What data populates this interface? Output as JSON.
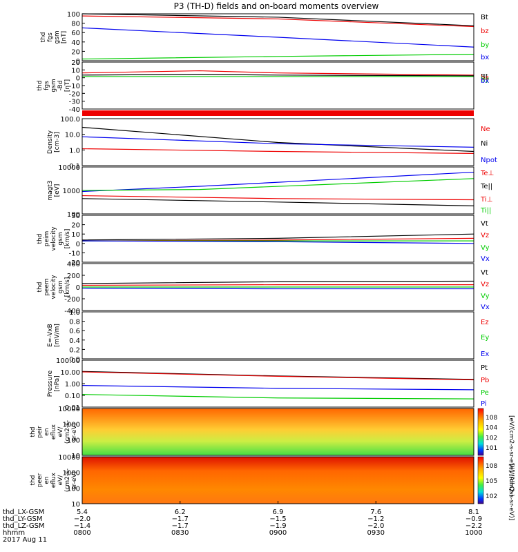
{
  "title": "P3 (TH-D) fields and on-board moments overview",
  "colors": {
    "black": "#000000",
    "red": "#ee0000",
    "green": "#00cc00",
    "blue": "#0000ee"
  },
  "chart_data": [
    {
      "id": "fgs",
      "type": "line",
      "ylabel": [
        "thd",
        "fgs",
        "gsm",
        "[nT]"
      ],
      "yticks": [
        "100",
        "80",
        "60",
        "40",
        "20",
        "0"
      ],
      "ylim": [
        -10,
        100
      ],
      "legend": [
        {
          "label": "Bt",
          "color": "#000000"
        },
        {
          "label": "bz",
          "color": "#ee0000"
        },
        {
          "label": "by",
          "color": "#00cc00"
        },
        {
          "label": "bx",
          "color": "#0000ee"
        }
      ],
      "series": [
        {
          "color": "#000000",
          "points": [
            [
              0,
              100
            ],
            [
              0.5,
              92
            ],
            [
              1,
              72
            ]
          ]
        },
        {
          "color": "#ee0000",
          "points": [
            [
              0,
              95
            ],
            [
              0.5,
              88
            ],
            [
              1,
              70
            ]
          ]
        },
        {
          "color": "#0000ee",
          "points": [
            [
              0,
              67
            ],
            [
              0.5,
              45
            ],
            [
              1,
              22
            ]
          ]
        },
        {
          "color": "#00cc00",
          "points": [
            [
              0,
              -6
            ],
            [
              0.5,
              0
            ],
            [
              1,
              5
            ]
          ]
        }
      ]
    },
    {
      "id": "fgs_delta",
      "type": "line",
      "ylabel": [
        "thd",
        "fgs",
        "gsm",
        "-Bd",
        "[nT]"
      ],
      "yticks": [
        "20",
        "10",
        "0",
        "-10",
        "-20",
        "-30",
        "-40"
      ],
      "ylim": [
        -45,
        20
      ],
      "legend": [
        {
          "label": "Bt",
          "color": "#000000"
        },
        {
          "label": "bz",
          "color": "#ee0000"
        },
        {
          "label": "by",
          "color": "#00cc00"
        },
        {
          "label": "bx",
          "color": "#0000ee"
        }
      ],
      "series": [
        {
          "color": "#ee0000",
          "points": [
            [
              0,
              5
            ],
            [
              0.3,
              8
            ],
            [
              0.5,
              5
            ],
            [
              1,
              2
            ]
          ]
        },
        {
          "color": "#000000",
          "points": [
            [
              0,
              2
            ],
            [
              0.3,
              3
            ],
            [
              0.5,
              2
            ],
            [
              1,
              1
            ]
          ]
        },
        {
          "color": "#00cc00",
          "points": [
            [
              0,
              0
            ],
            [
              0.5,
              0
            ],
            [
              1,
              0
            ]
          ]
        }
      ]
    },
    {
      "id": "density",
      "type": "line",
      "ylabel": [
        "Density",
        "[cm-3]"
      ],
      "yticks": [
        "100.0",
        "10.0",
        "1.0",
        "0.1"
      ],
      "ylim": [
        0.1,
        100
      ],
      "log": true,
      "legend": [
        {
          "label": "Ne",
          "color": "#ee0000"
        },
        {
          "label": "Ni",
          "color": "#000000"
        },
        {
          "label": "Npot",
          "color": "#0000ee"
        }
      ],
      "series": [
        {
          "color": "#000000",
          "points": [
            [
              0,
              28
            ],
            [
              0.5,
              3
            ],
            [
              1,
              0.8
            ]
          ]
        },
        {
          "color": "#0000ee",
          "points": [
            [
              0,
              7
            ],
            [
              0.5,
              2.5
            ],
            [
              1,
              1.5
            ]
          ]
        },
        {
          "color": "#ee0000",
          "points": [
            [
              0,
              1.2
            ],
            [
              0.5,
              0.8
            ],
            [
              1,
              0.6
            ]
          ]
        }
      ]
    },
    {
      "id": "temperature",
      "type": "line",
      "ylabel": [
        "magt3",
        "[eV]"
      ],
      "yticks": [
        "10000",
        "1000",
        "100"
      ],
      "ylim": [
        100,
        10000
      ],
      "log": true,
      "legend": [
        {
          "label": "Te⊥",
          "color": "#ee0000"
        },
        {
          "label": "Te||",
          "color": "#000000"
        },
        {
          "label": "Ti⊥",
          "color": "#ee0000"
        },
        {
          "label": "Ti||",
          "color": "#00cc00"
        }
      ],
      "series": [
        {
          "color": "#0000ee",
          "points": [
            [
              0,
              900
            ],
            [
              0.3,
              1500
            ],
            [
              1,
              6000
            ]
          ]
        },
        {
          "color": "#00cc00",
          "points": [
            [
              0,
              1000
            ],
            [
              0.3,
              1100
            ],
            [
              1,
              3200
            ]
          ]
        },
        {
          "color": "#ee0000",
          "points": [
            [
              0,
              600
            ],
            [
              0.5,
              450
            ],
            [
              1,
              400
            ]
          ]
        },
        {
          "color": "#000000",
          "points": [
            [
              0,
              450
            ],
            [
              0.5,
              320
            ],
            [
              1,
              220
            ]
          ]
        }
      ]
    },
    {
      "id": "peim_velocity",
      "type": "line",
      "ylabel": [
        "thd",
        "peim",
        "velocity",
        "gsm",
        "[km/s]"
      ],
      "yticks": [
        "30",
        "20",
        "10",
        "0",
        "-10",
        "-20"
      ],
      "ylim": [
        -25,
        30
      ],
      "legend": [
        {
          "label": "Vt",
          "color": "#000000"
        },
        {
          "label": "Vz",
          "color": "#ee0000"
        },
        {
          "label": "Vy",
          "color": "#00cc00"
        },
        {
          "label": "Vx",
          "color": "#0000ee"
        }
      ],
      "series": [
        {
          "color": "#000000",
          "points": [
            [
              0,
              1
            ],
            [
              0.5,
              3
            ],
            [
              1,
              8
            ]
          ]
        },
        {
          "color": "#ee0000",
          "points": [
            [
              0,
              0
            ],
            [
              0.5,
              1
            ],
            [
              1,
              3
            ]
          ]
        },
        {
          "color": "#00cc00",
          "points": [
            [
              0,
              0
            ],
            [
              0.5,
              0
            ],
            [
              1,
              0
            ]
          ]
        },
        {
          "color": "#0000ee",
          "points": [
            [
              0,
              0
            ],
            [
              0.5,
              -1
            ],
            [
              1,
              -3
            ]
          ]
        }
      ]
    },
    {
      "id": "peem_velocity",
      "type": "line",
      "ylabel": [
        "thd",
        "peem",
        "velocity",
        "gsm",
        "[km/s]"
      ],
      "yticks": [
        "400",
        "200",
        "0",
        "-200",
        "-400"
      ],
      "ylim": [
        -400,
        400
      ],
      "legend": [
        {
          "label": "Vt",
          "color": "#000000"
        },
        {
          "label": "Vz",
          "color": "#ee0000"
        },
        {
          "label": "Vy",
          "color": "#00cc00"
        },
        {
          "label": "Vx",
          "color": "#0000ee"
        }
      ],
      "series": [
        {
          "color": "#000000",
          "points": [
            [
              0,
              60
            ],
            [
              0.5,
              90
            ],
            [
              1,
              100
            ]
          ]
        },
        {
          "color": "#ee0000",
          "points": [
            [
              0,
              30
            ],
            [
              0.5,
              40
            ],
            [
              1,
              40
            ]
          ]
        },
        {
          "color": "#00cc00",
          "points": [
            [
              0,
              0
            ],
            [
              0.5,
              0
            ],
            [
              1,
              0
            ]
          ]
        },
        {
          "color": "#0000ee",
          "points": [
            [
              0,
              -20
            ],
            [
              0.5,
              -30
            ],
            [
              1,
              -30
            ]
          ]
        }
      ]
    },
    {
      "id": "efield",
      "type": "line",
      "ylabel": [
        "E=-VxB",
        "[mV/m]"
      ],
      "yticks": [
        "1.0",
        "0.8",
        "0.6",
        "0.4",
        "0.2",
        "0.0"
      ],
      "ylim": [
        0,
        1
      ],
      "legend": [
        {
          "label": "Ez",
          "color": "#ee0000"
        },
        {
          "label": "Ey",
          "color": "#00cc00"
        },
        {
          "label": "Ex",
          "color": "#0000ee"
        }
      ],
      "series": []
    },
    {
      "id": "pressure",
      "type": "line",
      "ylabel": [
        "Pressure",
        "[nPa]"
      ],
      "yticks": [
        "100.00",
        "10.00",
        "1.00",
        "0.10",
        "0.01"
      ],
      "ylim": [
        0.01,
        100
      ],
      "log": true,
      "legend": [
        {
          "label": "Pt",
          "color": "#000000"
        },
        {
          "label": "Pb",
          "color": "#ee0000"
        },
        {
          "label": "Pe",
          "color": "#00cc00"
        },
        {
          "label": "Pi",
          "color": "#0000ee"
        }
      ],
      "series": [
        {
          "color": "#000000",
          "points": [
            [
              0,
              11
            ],
            [
              0.5,
              4.5
            ],
            [
              1,
              2.3
            ]
          ]
        },
        {
          "color": "#ee0000",
          "points": [
            [
              0,
              10
            ],
            [
              0.5,
              4.2
            ],
            [
              1,
              2.1
            ]
          ]
        },
        {
          "color": "#0000ee",
          "points": [
            [
              0,
              0.7
            ],
            [
              0.5,
              0.4
            ],
            [
              1,
              0.3
            ]
          ]
        },
        {
          "color": "#00cc00",
          "points": [
            [
              0,
              0.12
            ],
            [
              0.5,
              0.06
            ],
            [
              1,
              0.05
            ]
          ]
        }
      ]
    },
    {
      "id": "peir_en_eflux",
      "type": "heatmap",
      "ylabel": [
        "thd",
        "peir",
        "en",
        "eflux",
        "eV/",
        "(cm2-s-",
        "sr-eV)"
      ],
      "yticks": [
        "10000",
        "1000",
        "100",
        "10"
      ],
      "colorbar_ticks": [
        "10^8",
        "10^4",
        "10^2",
        "10^1"
      ],
      "colorbar_label": "[eV/(cm2-s-sr-eV)] (All Qs)"
    },
    {
      "id": "peer_en_eflux",
      "type": "heatmap",
      "ylabel": [
        "thd",
        "peer",
        "en",
        "eflux",
        "eV/",
        "(cm2-s-",
        "sr-eV)"
      ],
      "yticks": [
        "10000",
        "1000",
        "100",
        "10"
      ],
      "colorbar_ticks": [
        "10^8",
        "10^5",
        "10^2"
      ],
      "colorbar_label": "[eV/(cm2-s-sr-eV)]"
    }
  ],
  "x_axis": {
    "ticks": [
      "0800",
      "0830",
      "0900",
      "0930",
      "1000"
    ],
    "ephemeris_labels": [
      "thd_LX-GSM",
      "thd_LY-GSM",
      "thd_LZ-GSM",
      "hhmm",
      "2017 Aug 11"
    ],
    "LX": [
      "5.4",
      "6.2",
      "6.9",
      "7.6",
      "8.1"
    ],
    "LY": [
      "−2.0",
      "−1.7",
      "−1.5",
      "−1.2",
      "−0.9"
    ],
    "LZ": [
      "−1.4",
      "−1.7",
      "−1.9",
      "−2.0",
      "−2.2"
    ]
  }
}
